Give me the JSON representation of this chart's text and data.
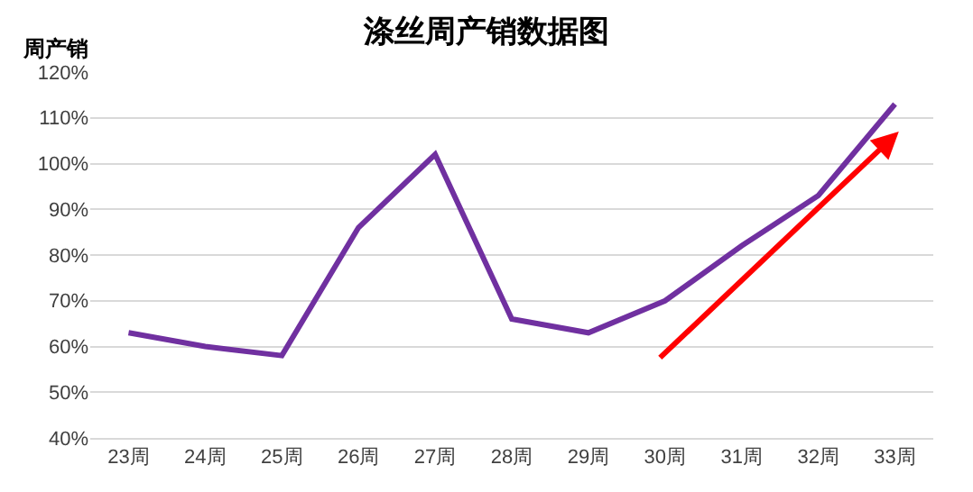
{
  "chart_data": {
    "type": "line",
    "title": "涤丝周产销数据图",
    "ylabel": "周产销",
    "categories": [
      "23周",
      "24周",
      "25周",
      "26周",
      "27周",
      "28周",
      "29周",
      "30周",
      "31周",
      "32周",
      "33周"
    ],
    "series": [
      {
        "color": "#7030a0",
        "values": [
          63,
          60,
          58,
          86,
          102,
          66,
          63,
          70,
          82,
          93,
          113
        ]
      }
    ],
    "ylim": [
      40,
      120
    ],
    "yticks": [
      {
        "value": 40,
        "label": "40%"
      },
      {
        "value": 50,
        "label": "50%"
      },
      {
        "value": 60,
        "label": "60%"
      },
      {
        "value": 70,
        "label": "70%"
      },
      {
        "value": 80,
        "label": "80%"
      },
      {
        "value": 90,
        "label": "90%"
      },
      {
        "value": 100,
        "label": "100%"
      },
      {
        "value": 110,
        "label": "110%"
      },
      {
        "value": 120,
        "label": "120%"
      }
    ],
    "grid": "y",
    "marker": "none",
    "line_style": "solid"
  }
}
